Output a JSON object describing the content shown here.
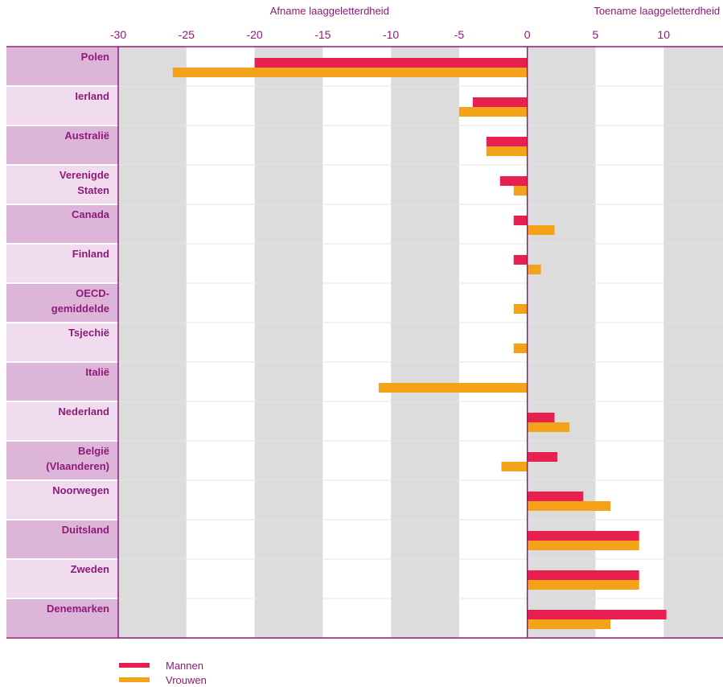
{
  "chart_data": {
    "type": "bar",
    "orientation": "horizontal",
    "header_left": "Afname laaggeletterdheid",
    "header_right": "Toename laaggeletterdheid",
    "xlim": [
      -30,
      15
    ],
    "xticks": [
      -30,
      -25,
      -20,
      -15,
      -10,
      -5,
      0,
      5,
      10,
      15
    ],
    "categories": [
      "Polen",
      "Ierland",
      "Australië",
      "Verenigde Staten",
      "Canada",
      "Finland",
      "OECD-gemiddelde",
      "Tsjechië",
      "Italië",
      "Nederland",
      "België (Vlaanderen)",
      "Noorwegen",
      "Duitsland",
      "Zweden",
      "Denemarken"
    ],
    "category_lines": [
      [
        "Polen"
      ],
      [
        "Ierland"
      ],
      [
        "Australië"
      ],
      [
        "Verenigde",
        "Staten"
      ],
      [
        "Canada"
      ],
      [
        "Finland"
      ],
      [
        "OECD-",
        "gemiddelde"
      ],
      [
        "Tsjechië"
      ],
      [
        "Italië"
      ],
      [
        "Nederland"
      ],
      [
        "België",
        "(Vlaanderen)"
      ],
      [
        "Noorwegen"
      ],
      [
        "Duitsland"
      ],
      [
        "Zweden"
      ],
      [
        "Denemarken"
      ]
    ],
    "series": [
      {
        "name": "Mannen",
        "color": "#e8204f",
        "values": [
          -20,
          -4,
          -3,
          -2,
          -1,
          -1,
          0,
          0,
          0,
          2,
          2.2,
          4.1,
          8.2,
          8.2,
          10.2
        ]
      },
      {
        "name": "Vrouwen",
        "color": "#f5a21b",
        "values": [
          -26,
          -5,
          -3,
          -1,
          2,
          1,
          -1,
          -1,
          -10.9,
          3.1,
          -1.9,
          6.1,
          8.2,
          8.2,
          6.1
        ]
      }
    ],
    "grid": true
  },
  "colors": {
    "accent": "#8e1a7a",
    "label_band_dark": "#ddb5d8",
    "label_band_light": "#f0dcee",
    "grid_band": "#dcdcdd"
  }
}
